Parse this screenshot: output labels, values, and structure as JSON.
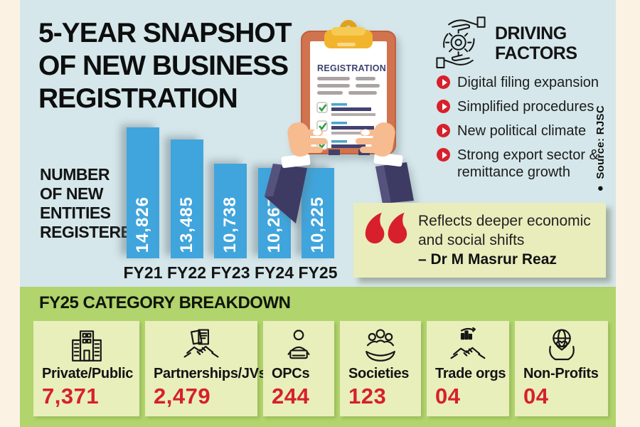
{
  "title": {
    "line1": "5-YEAR SNAPSHOT",
    "line2": "OF NEW BUSINESS",
    "line3": "REGISTRATION"
  },
  "source_note": "● Source: RJSC",
  "chart_data": {
    "type": "bar",
    "title": "NUMBER OF NEW ENTITIES REGISTERED",
    "axis_label_lines": [
      "NUMBER",
      "OF NEW",
      "ENTITIES",
      "REGISTERED"
    ],
    "categories": [
      "FY21",
      "FY22",
      "FY23",
      "FY24",
      "FY25"
    ],
    "values": [
      14826,
      13485,
      10738,
      10267,
      10225
    ],
    "value_labels": [
      "14,826",
      "13,485",
      "10,738",
      "10,267",
      "10,225"
    ],
    "ylim": [
      0,
      14826
    ],
    "grid": false,
    "legend": "none"
  },
  "clipboard": {
    "title": "REGISTRATION"
  },
  "driving_factors": {
    "heading_line1": "DRIVING",
    "heading_line2": "FACTORS",
    "items": [
      "Digital filing expansion",
      "Simplified procedures",
      "New political climate",
      "Strong export sector & remittance growth"
    ]
  },
  "quote": {
    "line1": "Reflects deeper economic",
    "line2": "and social shifts",
    "attribution": "– Dr M Masrur Reaz"
  },
  "breakdown": {
    "heading": "FY25 CATEGORY BREAKDOWN",
    "cards": [
      {
        "icon": "building-icon",
        "label": "Private/Public",
        "value": "7,371"
      },
      {
        "icon": "handshake-document-icon",
        "label": "Partnerships/JVs",
        "value": "2,479"
      },
      {
        "icon": "person-laptop-icon",
        "label": "OPCs",
        "value": "244"
      },
      {
        "icon": "hand-people-icon",
        "label": "Societies",
        "value": "123"
      },
      {
        "icon": "handshake-chart-icon",
        "label": "Trade orgs",
        "value": "04"
      },
      {
        "icon": "hands-globe-heart-icon",
        "label": "Non-Profits",
        "value": "04"
      }
    ]
  },
  "colors": {
    "cream_strip": "#fcf2e3",
    "background_blue": "#d5e7ea",
    "bar_blue": "#40a5dc",
    "band_green": "#b1d46c",
    "card_bg": "#e8efbb",
    "quote_bg": "#e9edbc",
    "accent_red": "#d7202b",
    "sleeve_navy": "#3d3b63",
    "clipboard_orange": "#d0734e",
    "clip_yellow": "#f1b42c",
    "check_green": "#2f9e44",
    "paper_heading_navy": "#3d4170",
    "skin": "#f7bb90"
  }
}
